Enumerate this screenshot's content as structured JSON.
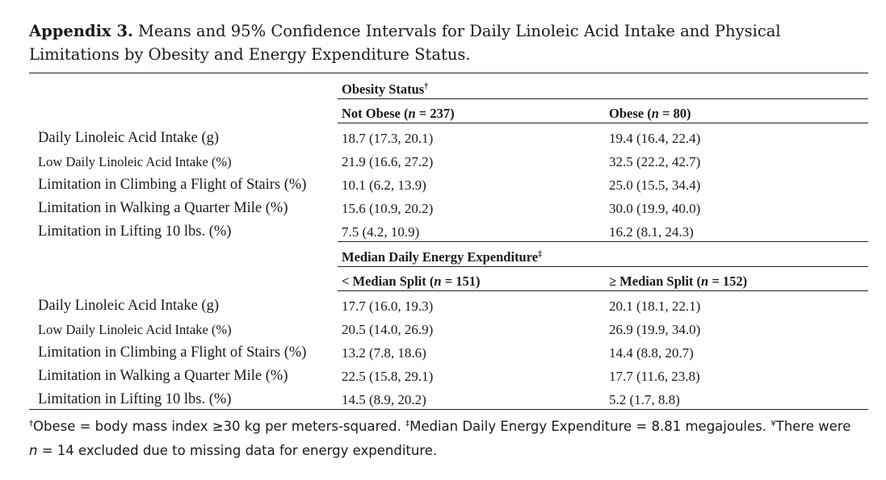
{
  "caption": {
    "label": "Appendix 3.",
    "text": " Means and 95% Confidence Intervals for Daily Linoleic Acid Intake and Physical Limitations by Obesity and Energy Expenditure Status."
  },
  "section1": {
    "group_header": "Obesity Status",
    "group_mark": "†",
    "col1": {
      "prefix": "Not Obese (",
      "n": "n",
      "suffix": " = 237)"
    },
    "col2": {
      "prefix": "Obese (",
      "n": "n",
      "suffix": " = 80)"
    },
    "rows": [
      {
        "label": "Daily Linoleic Acid Intake (g)",
        "v1": "18.7 (17.3, 20.1)",
        "v2": "19.4 (16.4, 22.4)"
      },
      {
        "label": "Low Daily Linoleic Acid Intake (%)",
        "v1": "21.9 (16.6, 27.2)",
        "v2": "32.5 (22.2, 42.7)"
      },
      {
        "label": "Limitation in Climbing a Flight of Stairs (%)",
        "v1": "10.1 (6.2, 13.9)",
        "v2": "25.0 (15.5, 34.4)"
      },
      {
        "label": "Limitation in Walking a Quarter Mile (%)",
        "v1": "15.6 (10.9, 20.2)",
        "v2": "30.0 (19.9, 40.0)"
      },
      {
        "label": "Limitation in Lifting 10 lbs. (%)",
        "v1": "7.5 (4.2, 10.9)",
        "v2": "16.2 (8.1, 24.3)"
      }
    ]
  },
  "section2": {
    "group_header": "Median Daily Energy Expenditure",
    "group_mark": "‡",
    "col1": {
      "prefix": "< Median Split (",
      "n": "n",
      "suffix": " = 151)"
    },
    "col2": {
      "prefix": "≥ Median Split (",
      "n": "n",
      "suffix": " = 152)"
    },
    "rows": [
      {
        "label": "Daily Linoleic Acid Intake (g)",
        "v1": "17.7 (16.0, 19.3)",
        "v2": "20.1 (18.1, 22.1)"
      },
      {
        "label": "Low Daily Linoleic Acid Intake (%)",
        "v1": "20.5 (14.0, 26.9)",
        "v2": "26.9 (19.9, 34.0)"
      },
      {
        "label": "Limitation in Climbing a Flight of Stairs (%)",
        "v1": "13.2 (7.8, 18.6)",
        "v2": "14.4 (8.8, 20.7)"
      },
      {
        "label": "Limitation in Walking a Quarter Mile (%)",
        "v1": "22.5 (15.8, 29.1)",
        "v2": "17.7 (11.6, 23.8)"
      },
      {
        "label": "Limitation in Lifting 10 lbs. (%)",
        "v1": "14.5 (8.9, 20.2)",
        "v2": "5.2 (1.7, 8.8)"
      }
    ]
  },
  "footnote": {
    "mark1": "†",
    "text1": "Obese = body mass index ≥30 kg per meters-squared. ",
    "mark2": "‡",
    "text2": "Median Daily Energy Expenditure = 8.81 megajoules. ",
    "mark3": "¥",
    "text3": "There were ",
    "n": "n",
    "text4": " = 14 excluded due to missing data for energy expenditure."
  }
}
